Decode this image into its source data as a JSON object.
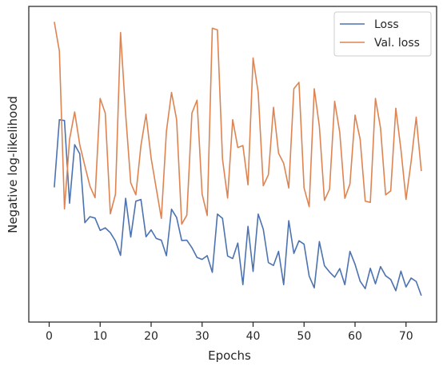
{
  "chart_data": {
    "type": "line",
    "xlabel": "Epochs",
    "ylabel": "Negative log-likelihood",
    "xlim": [
      -4,
      76
    ],
    "ylim": [
      0,
      100
    ],
    "xticks": [
      0,
      10,
      20,
      30,
      40,
      50,
      60,
      70
    ],
    "y_tick_labels": false,
    "grid": false,
    "legend_position": "top-right",
    "x": [
      1,
      2,
      3,
      4,
      5,
      6,
      7,
      8,
      9,
      10,
      11,
      12,
      13,
      14,
      15,
      16,
      17,
      18,
      19,
      20,
      21,
      22,
      23,
      24,
      25,
      26,
      27,
      28,
      29,
      30,
      31,
      32,
      33,
      34,
      35,
      36,
      37,
      38,
      39,
      40,
      41,
      42,
      43,
      44,
      45,
      46,
      47,
      48,
      49,
      50,
      51,
      52,
      53,
      54,
      55,
      56,
      57,
      58,
      59,
      60,
      61,
      62,
      63,
      64,
      65,
      66,
      67,
      68,
      69,
      70,
      71,
      72,
      73
    ],
    "series": [
      {
        "name": "Loss",
        "color": "#4c72b0",
        "values": [
          42.2,
          65.8,
          65.5,
          36.7,
          57.1,
          53.9,
          29.9,
          32.0,
          31.5,
          27.2,
          28.1,
          26.4,
          23.5,
          18.5,
          38.4,
          24.9,
          37.4,
          38.0,
          25.0,
          27.4,
          24.4,
          23.8,
          18.4,
          34.6,
          31.7,
          23.7,
          23.8,
          21.2,
          17.8,
          17.1,
          18.4,
          12.6,
          32.9,
          31.4,
          18.3,
          17.4,
          22.8,
          8.3,
          28.6,
          12.9,
          32.9,
          27.6,
          16.0,
          15.0,
          19.9,
          8.3,
          30.6,
          19.2,
          23.6,
          22.4,
          11.3,
          7.2,
          23.3,
          14.9,
          12.7,
          10.9,
          13.9,
          8.3,
          19.9,
          15.4,
          9.5,
          6.9,
          14.0,
          8.6,
          14.6,
          11.4,
          10.1,
          6.2,
          13.0,
          7.5,
          10.6,
          9.4,
          4.5
        ]
      },
      {
        "name": "Val. loss",
        "color": "#dd8452",
        "values": [
          99.9,
          89.7,
          34.7,
          59.0,
          68.5,
          57.1,
          49.7,
          42.6,
          38.6,
          73.2,
          68.1,
          33.0,
          39.8,
          96.2,
          67.7,
          43.8,
          39.6,
          56.8,
          67.7,
          52.4,
          41.9,
          31.4,
          61.8,
          75.3,
          65.8,
          29.4,
          32.5,
          68.1,
          72.6,
          39.9,
          32.4,
          97.7,
          97.1,
          52.1,
          38.5,
          65.8,
          56.1,
          56.8,
          43.1,
          87.3,
          75.3,
          42.8,
          46.6,
          70.1,
          54.1,
          50.6,
          42.0,
          76.6,
          78.8,
          42.0,
          35.5,
          76.6,
          63.5,
          37.7,
          41.6,
          72.2,
          61.4,
          38.4,
          43.4,
          67.4,
          59.0,
          37.4,
          37.0,
          73.2,
          62.9,
          39.6,
          41.0,
          69.8,
          55.4,
          38.0,
          51.2,
          66.7,
          47.9
        ]
      }
    ]
  }
}
